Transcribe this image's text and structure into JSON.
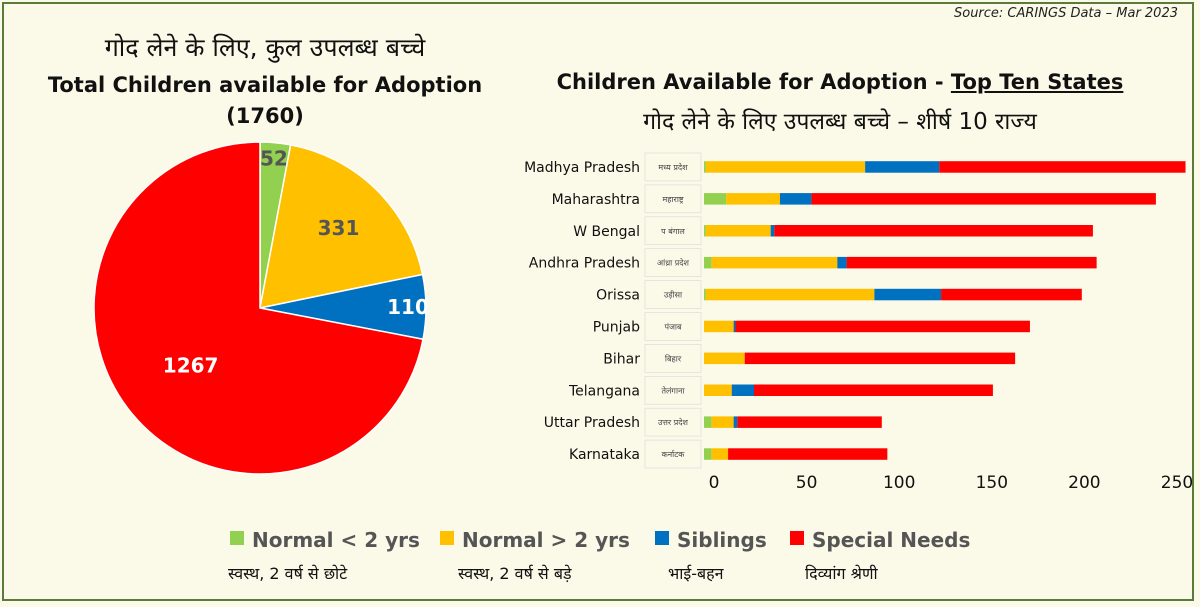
{
  "source_note": "Source: CARINGS Data – Mar 2023",
  "colors": {
    "normal_lt2": "#92d050",
    "normal_gt2": "#ffc000",
    "siblings": "#0070c0",
    "special": "#ff0000"
  },
  "legend": [
    {
      "label": "Normal < 2 yrs",
      "hindi": "स्वस्थ, 2 वर्ष से छोटे",
      "color_key": "normal_lt2"
    },
    {
      "label": "Normal > 2 yrs",
      "hindi": "स्वस्थ, 2 वर्ष से बड़े",
      "color_key": "normal_gt2"
    },
    {
      "label": "Siblings",
      "hindi": "भाई-बहन",
      "color_key": "siblings"
    },
    {
      "label": "Special Needs",
      "hindi": "दिव्यांग श्रेणी",
      "color_key": "special"
    }
  ],
  "chart_data": [
    {
      "type": "pie",
      "title_hindi": "गोद लेने के लिए, कुल उपलब्ध बच्चे",
      "title": "Total Children available for Adoption",
      "total_label": "(1760)",
      "slices": [
        {
          "label": "Normal < 2 yrs",
          "value": 52
        },
        {
          "label": "Normal > 2 yrs",
          "value": 331
        },
        {
          "label": "Siblings",
          "value": 110
        },
        {
          "label": "Special Needs",
          "value": 1267
        }
      ]
    },
    {
      "type": "bar",
      "orientation": "horizontal",
      "stacked": true,
      "title_prefix": "Children Available for Adoption - ",
      "title_underlined": "Top Ten States",
      "title_hindi": "गोद लेने के लिए उपलब्ध बच्चे – शीर्ष 10 राज्य",
      "categories": [
        "Madhya Pradesh",
        "Maharashtra",
        "W Bengal",
        "Andhra Pradesh",
        "Orissa",
        "Punjab",
        "Bihar",
        "Telangana",
        "Uttar Pradesh",
        "Karnataka"
      ],
      "categories_hindi": [
        "मध्य प्रदेश",
        "महाराष्ट्र",
        "प बंगाल",
        "आंध्रा प्रदेश",
        "उड़ीसा",
        "पंजाब",
        "बिहार",
        "तेलंगाना",
        "उत्तर प्रदेश",
        "कर्नाटक"
      ],
      "series": [
        {
          "name": "Normal < 2 yrs",
          "values": [
            1,
            12,
            1,
            4,
            1,
            0,
            0,
            0,
            4,
            4
          ]
        },
        {
          "name": "Normal > 2 yrs",
          "values": [
            86,
            29,
            35,
            68,
            91,
            16,
            22,
            15,
            12,
            9
          ]
        },
        {
          "name": "Siblings",
          "values": [
            40,
            17,
            2,
            5,
            36,
            1,
            0,
            12,
            2,
            0
          ]
        },
        {
          "name": "Special Needs",
          "values": [
            133,
            186,
            172,
            135,
            76,
            159,
            146,
            129,
            78,
            86
          ]
        }
      ],
      "xticks": [
        0,
        50,
        100,
        150,
        200,
        250
      ],
      "xlim": [
        0,
        260
      ]
    }
  ]
}
